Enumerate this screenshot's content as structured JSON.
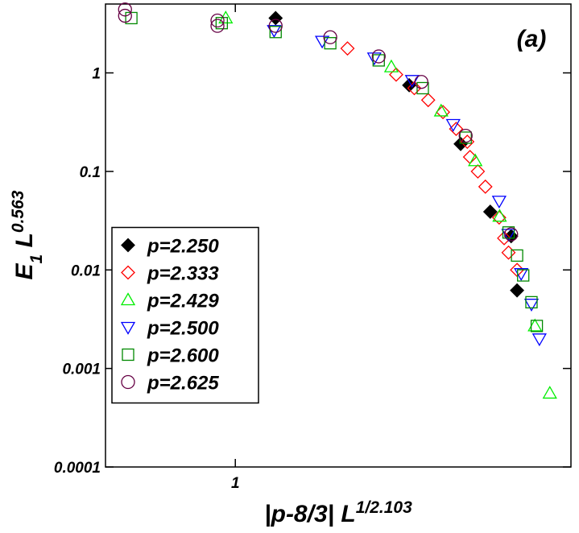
{
  "chart_data": {
    "type": "scatter",
    "annotation": "(a)",
    "xlabel": [
      {
        "text": "|p-8/3| L"
      },
      {
        "text": "1/2.103",
        "shift": "sup"
      }
    ],
    "ylabel": [
      {
        "text": "E"
      },
      {
        "text": "1",
        "shift": "sub"
      },
      {
        "text": " L"
      },
      {
        "text": "0.563",
        "shift": "sup"
      }
    ],
    "xscale": "log",
    "yscale": "log",
    "xlim": [
      0.5,
      6
    ],
    "ylim": [
      0.0001,
      5
    ],
    "xticks": [
      1
    ],
    "yticks": [
      0.0001,
      0.001,
      0.01,
      0.1,
      1
    ],
    "legend": "center left",
    "series": [
      {
        "name": "p=2.250",
        "color": "#000000",
        "marker": "diamond-filled",
        "x": [
          1.24,
          2.53,
          3.33,
          3.9,
          4.36,
          4.5
        ],
        "values": [
          3.6,
          0.75,
          0.19,
          0.039,
          0.022,
          0.0062
        ]
      },
      {
        "name": "p=2.333",
        "color": "#ff0000",
        "marker": "diamond",
        "x": [
          1.82,
          2.36,
          2.6,
          2.8,
          3.03,
          3.25,
          3.45,
          3.5,
          3.65,
          3.8,
          4.09,
          4.2,
          4.3,
          4.5
        ],
        "values": [
          1.77,
          0.96,
          0.7,
          0.53,
          0.4,
          0.27,
          0.2,
          0.14,
          0.1,
          0.07,
          0.034,
          0.021,
          0.015,
          0.01
        ]
      },
      {
        "name": "p=2.429",
        "color": "#00ee00",
        "marker": "triangle-up",
        "x": [
          0.95,
          2.3,
          3.0,
          3.6,
          4.1,
          4.95,
          5.36
        ],
        "values": [
          3.6,
          1.15,
          0.41,
          0.128,
          0.035,
          0.0027,
          0.00056
        ]
      },
      {
        "name": "p=2.500",
        "color": "#0000ff",
        "marker": "triangle-down",
        "x": [
          1.23,
          1.59,
          2.1,
          2.57,
          3.2,
          4.09,
          4.3,
          4.6,
          4.86,
          5.07
        ],
        "values": [
          2.7,
          2.1,
          1.42,
          0.84,
          0.3,
          0.05,
          0.023,
          0.0092,
          0.0045,
          0.002
        ]
      },
      {
        "name": "p=2.600",
        "color": "#008800",
        "marker": "square",
        "x": [
          0.574,
          0.93,
          1.24,
          1.66,
          2.15,
          2.72,
          3.42,
          4.3,
          4.5,
          4.65,
          4.86,
          5.0
        ],
        "values": [
          3.6,
          3.2,
          2.6,
          2.0,
          1.34,
          0.7,
          0.22,
          0.024,
          0.014,
          0.0088,
          0.0047,
          0.0027
        ]
      },
      {
        "name": "p=2.625",
        "color": "#660044",
        "marker": "circle",
        "x": [
          0.555,
          0.555,
          0.909,
          0.909,
          1.24,
          1.66,
          2.15,
          2.7,
          3.42,
          4.36
        ],
        "values": [
          4.4,
          3.8,
          3.4,
          3.0,
          3.0,
          2.3,
          1.47,
          0.81,
          0.23,
          0.023
        ]
      }
    ]
  }
}
